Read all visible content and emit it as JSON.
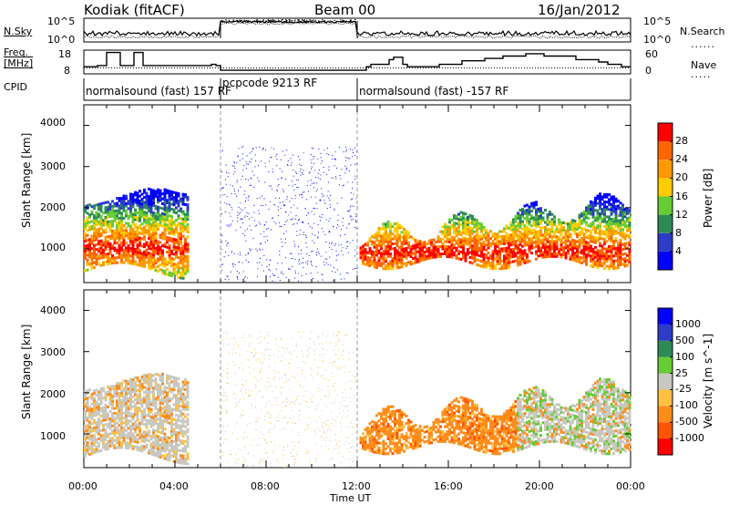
{
  "header": {
    "site": "Kodiak (fitACF)",
    "beam": "Beam 00",
    "date": "16/Jan/2012"
  },
  "side_labels": {
    "nsky": "N.Sky",
    "nsearch": "N.Search",
    "freq_line1": "Freq.",
    "freq_line2": "[MHz]",
    "nave": "Nave",
    "cpid": "CPID"
  },
  "colors": {
    "power_scale": [
      "#0000ff",
      "#2b3cc8",
      "#2e8b57",
      "#66cc33",
      "#ffcc00",
      "#ff9900",
      "#ff6600",
      "#ff0000"
    ],
    "velocity_scale": [
      "#ff0000",
      "#ff5500",
      "#ff8c1a",
      "#ffbf40",
      "#c8c8c0",
      "#66cc33",
      "#2e8b57",
      "#2b3cc8",
      "#0000ff"
    ]
  },
  "chart_data": [
    {
      "type": "line",
      "name": "noise-panel",
      "ylabel_left": "N.Sky",
      "ylabel_right": "N.Search",
      "left_ticks": [
        "10^5",
        "10^0"
      ],
      "right_ticks": [
        "10^5",
        "10^0"
      ],
      "xlim_hours": [
        0,
        24
      ]
    },
    {
      "type": "line",
      "name": "frequency-panel",
      "ylabel_left": "Freq. [MHz]",
      "ylabel_right": "Nave",
      "left_ticks": [
        "18",
        "8"
      ],
      "right_ticks": [
        "60",
        "0"
      ],
      "freq_series": {
        "x": [
          0,
          0.3,
          0.6,
          1.0,
          1.6,
          2.0,
          2.2,
          2.4,
          2.6,
          3.2,
          3.8,
          4.4,
          5.4,
          5.6,
          5.8,
          6.0,
          12.0,
          12.4,
          12.6,
          13.0,
          13.4,
          13.6,
          14.0,
          14.2,
          15.6,
          16.6,
          17.6,
          18.4,
          19.4,
          20.2,
          21.6,
          22.6,
          23.0,
          23.6,
          24
        ],
        "y": [
          11,
          11,
          11.5,
          17,
          11.5,
          11.5,
          17,
          17,
          11.5,
          11.5,
          11.5,
          11.5,
          11.5,
          12,
          11.5,
          9.5,
          9.5,
          11,
          12,
          12,
          14,
          15,
          12,
          11,
          12,
          13.5,
          14.5,
          15.5,
          16.5,
          15.5,
          14,
          13,
          12,
          11,
          11
        ]
      },
      "nave_dotted": 15
    },
    {
      "type": "table",
      "name": "cpid-panel",
      "segments": [
        {
          "label": "normalsound (fast) 157 RF",
          "start": 0,
          "end": 6
        },
        {
          "label": "pcpcode 9213 RF",
          "start": 6,
          "end": 12
        },
        {
          "label": "normalsound (fast) -157 RF",
          "start": 12,
          "end": 24
        }
      ]
    },
    {
      "type": "heatmap",
      "name": "power-panel",
      "ylabel": "Slant Range [km]",
      "yticks": [
        1000,
        2000,
        3000,
        4000
      ],
      "ylim": [
        180,
        4500
      ],
      "xlim_hours": [
        0,
        24
      ],
      "colorbar_label": "Power [dB]",
      "colorbar_ticks": [
        "28",
        "24",
        "20",
        "16",
        "12",
        "8",
        "4"
      ],
      "colorbar_range": [
        0,
        32
      ]
    },
    {
      "type": "heatmap",
      "name": "velocity-panel",
      "ylabel": "Slant Range [km]",
      "yticks": [
        1000,
        2000,
        3000,
        4000
      ],
      "ylim": [
        180,
        4500
      ],
      "xlim_hours": [
        0,
        24
      ],
      "colorbar_label": "Velocity [m s^-1]",
      "colorbar_ticks": [
        "1000",
        "500",
        "100",
        "25",
        "-25",
        "-100",
        "-500",
        "-1000"
      ]
    }
  ],
  "x_axis": {
    "ticks": [
      "00:00",
      "04:00",
      "08:00",
      "12:00",
      "16:00",
      "20:00",
      "00:00"
    ],
    "label": "Time UT"
  }
}
